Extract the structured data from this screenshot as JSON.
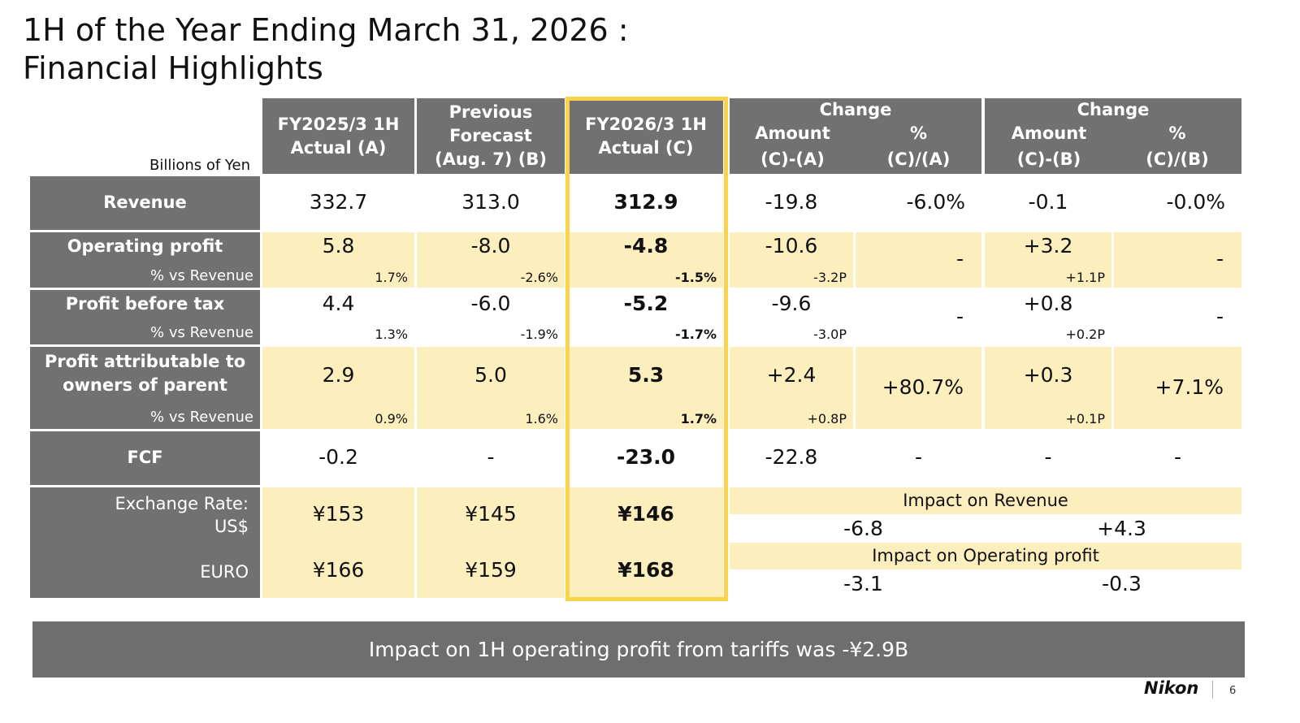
{
  "title": {
    "line1": "1H of the Year Ending March 31, 2026 :",
    "line2": "Financial Highlights"
  },
  "units": "Billions of Yen",
  "headers": {
    "a": [
      "FY2025/3 1H",
      "Actual (A)"
    ],
    "b": [
      "Previous",
      "Forecast",
      "(Aug. 7) (B)"
    ],
    "c": [
      "FY2026/3 1H",
      "Actual (C)"
    ],
    "change_a": {
      "title": "Change",
      "amount": "Amount",
      "amount_formula": "(C)-(A)",
      "pct": "%",
      "pct_formula": "(C)/(A)"
    },
    "change_b": {
      "title": "Change",
      "amount": "Amount",
      "amount_formula": "(C)-(B)",
      "pct": "%",
      "pct_formula": "(C)/(B)"
    }
  },
  "rows": [
    {
      "label": "Revenue",
      "sub_label": "",
      "values": [
        "332.7",
        "313.0",
        "312.9",
        "-19.8",
        "-6.0%",
        "-0.1",
        "-0.0%"
      ],
      "subs": [
        "",
        "",
        "",
        "",
        "",
        "",
        ""
      ]
    },
    {
      "label": "Operating profit",
      "sub_label": "% vs Revenue",
      "values": [
        "5.8",
        "-8.0",
        "-4.8",
        "-10.6",
        "-",
        "+3.2",
        "-"
      ],
      "subs": [
        "1.7%",
        "-2.6%",
        "-1.5%",
        "-3.2P",
        "",
        "+1.1P",
        ""
      ]
    },
    {
      "label": "Profit before tax",
      "sub_label": "% vs Revenue",
      "values": [
        "4.4",
        "-6.0",
        "-5.2",
        "-9.6",
        "-",
        "+0.8",
        "-"
      ],
      "subs": [
        "1.3%",
        "-1.9%",
        "-1.7%",
        "-3.0P",
        "",
        "+0.2P",
        ""
      ]
    },
    {
      "label": "Profit attributable to owners of parent",
      "sub_label": "% vs Revenue",
      "values": [
        "2.9",
        "5.0",
        "5.3",
        "+2.4",
        "+80.7%",
        "+0.3",
        "+7.1%"
      ],
      "subs": [
        "0.9%",
        "1.6%",
        "1.7%",
        "+0.8P",
        "",
        "+0.1P",
        ""
      ]
    },
    {
      "label": "FCF",
      "sub_label": "",
      "values": [
        "-0.2",
        "-",
        "-23.0",
        "-22.8",
        "-",
        "-",
        "-"
      ],
      "subs": [
        "",
        "",
        "",
        "",
        "",
        "",
        ""
      ]
    }
  ],
  "fx": {
    "label": "Exchange Rate:",
    "usd_label": "US$",
    "euro_label": "EURO",
    "usd": [
      "¥153",
      "¥145",
      "¥146"
    ],
    "euro": [
      "¥166",
      "¥159",
      "¥168"
    ],
    "impact_revenue_label": "Impact on Revenue",
    "impact_revenue": [
      "-6.8",
      "+4.3"
    ],
    "impact_op_label": "Impact on Operating profit",
    "impact_op": [
      "-3.1",
      "-0.3"
    ]
  },
  "banner": "Impact on 1H operating profit from tariffs was -¥2.9B",
  "footer": {
    "logo": "Nikon",
    "page": "6"
  },
  "colors": {
    "header_gray": "#717171",
    "row_yellow": "#fdefbd",
    "highlight": "#f9d34c"
  }
}
